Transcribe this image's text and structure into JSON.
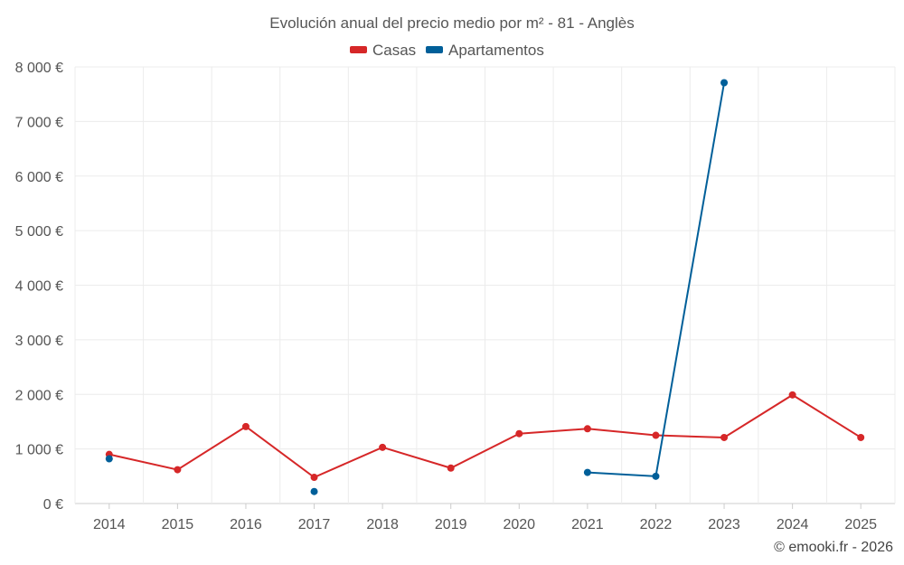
{
  "chart_data": {
    "type": "line",
    "title": "Evolución anual del precio medio por m² - 81 - Anglès",
    "categories": [
      "2014",
      "2015",
      "2016",
      "2017",
      "2018",
      "2019",
      "2020",
      "2021",
      "2022",
      "2023",
      "2024",
      "2025"
    ],
    "series": [
      {
        "name": "Casas",
        "color": "#d62728",
        "values": [
          900,
          620,
          1410,
          480,
          1030,
          650,
          1280,
          1370,
          1250,
          1210,
          1990,
          1210
        ]
      },
      {
        "name": "Apartamentos",
        "color": "#005f99",
        "values": [
          820,
          null,
          null,
          220,
          null,
          null,
          null,
          570,
          500,
          7710,
          null,
          null
        ]
      }
    ],
    "y_ticks": [
      0,
      1000,
      2000,
      3000,
      4000,
      5000,
      6000,
      7000,
      8000
    ],
    "y_tick_labels": [
      "0 €",
      "1 000 €",
      "2 000 €",
      "3 000 €",
      "4 000 €",
      "5 000 €",
      "6 000 €",
      "7 000 €",
      "8 000 €"
    ],
    "ylim": [
      0,
      8000
    ],
    "xlabel": "",
    "ylabel": "",
    "grid": true,
    "legend_position": "top-center"
  },
  "credit": "© emooki.fr - 2026"
}
